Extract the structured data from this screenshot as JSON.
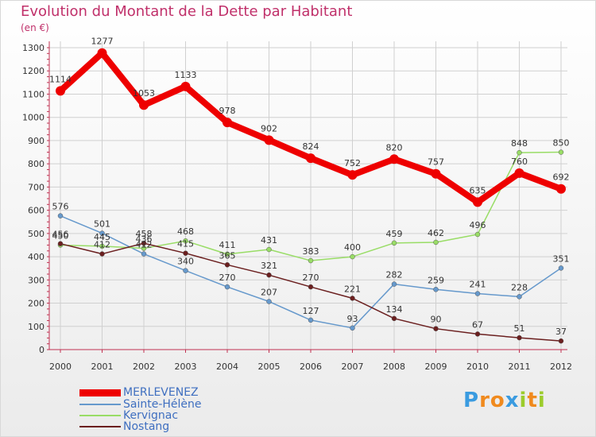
{
  "chart_data": {
    "type": "line",
    "title": "Evolution du Montant de la Dette par Habitant",
    "unit": "(en €)",
    "xlabel": "",
    "ylabel": "",
    "categories": [
      "2000",
      "2001",
      "2002",
      "2003",
      "2004",
      "2005",
      "2006",
      "2007",
      "2008",
      "2009",
      "2010",
      "2011",
      "2012"
    ],
    "ylim": [
      0,
      1300
    ],
    "yticks": [
      0,
      100,
      200,
      300,
      400,
      500,
      600,
      700,
      800,
      900,
      1000,
      1100,
      1200,
      1300
    ],
    "grid": true,
    "legend_position": "bottom-left",
    "series": [
      {
        "name": "MERLEVENEZ",
        "color": "#ee0000",
        "values": [
          1114,
          1277,
          1053,
          1133,
          978,
          902,
          824,
          752,
          820,
          757,
          635,
          760,
          692
        ]
      },
      {
        "name": "Sainte-Hélène",
        "color": "#6699cc",
        "values": [
          576,
          501,
          412,
          340,
          270,
          207,
          127,
          93,
          282,
          259,
          241,
          228,
          351
        ]
      },
      {
        "name": "Kervignac",
        "color": "#99dd66",
        "values": [
          450,
          445,
          436,
          468,
          411,
          431,
          383,
          400,
          459,
          462,
          496,
          848,
          850
        ]
      },
      {
        "name": "Nostang",
        "color": "#6b1f1f",
        "values": [
          456,
          412,
          458,
          415,
          365,
          321,
          270,
          221,
          134,
          90,
          67,
          51,
          37
        ]
      }
    ]
  },
  "logo": {
    "text": "Proxiti",
    "letters": [
      "P",
      "r",
      "o",
      "x",
      "i",
      "t",
      "i"
    ],
    "colors": [
      "#3a9be0",
      "#f08a1e",
      "#f08a1e",
      "#3a9be0",
      "#9ccc2c",
      "#f08a1e",
      "#9ccc2c"
    ]
  }
}
